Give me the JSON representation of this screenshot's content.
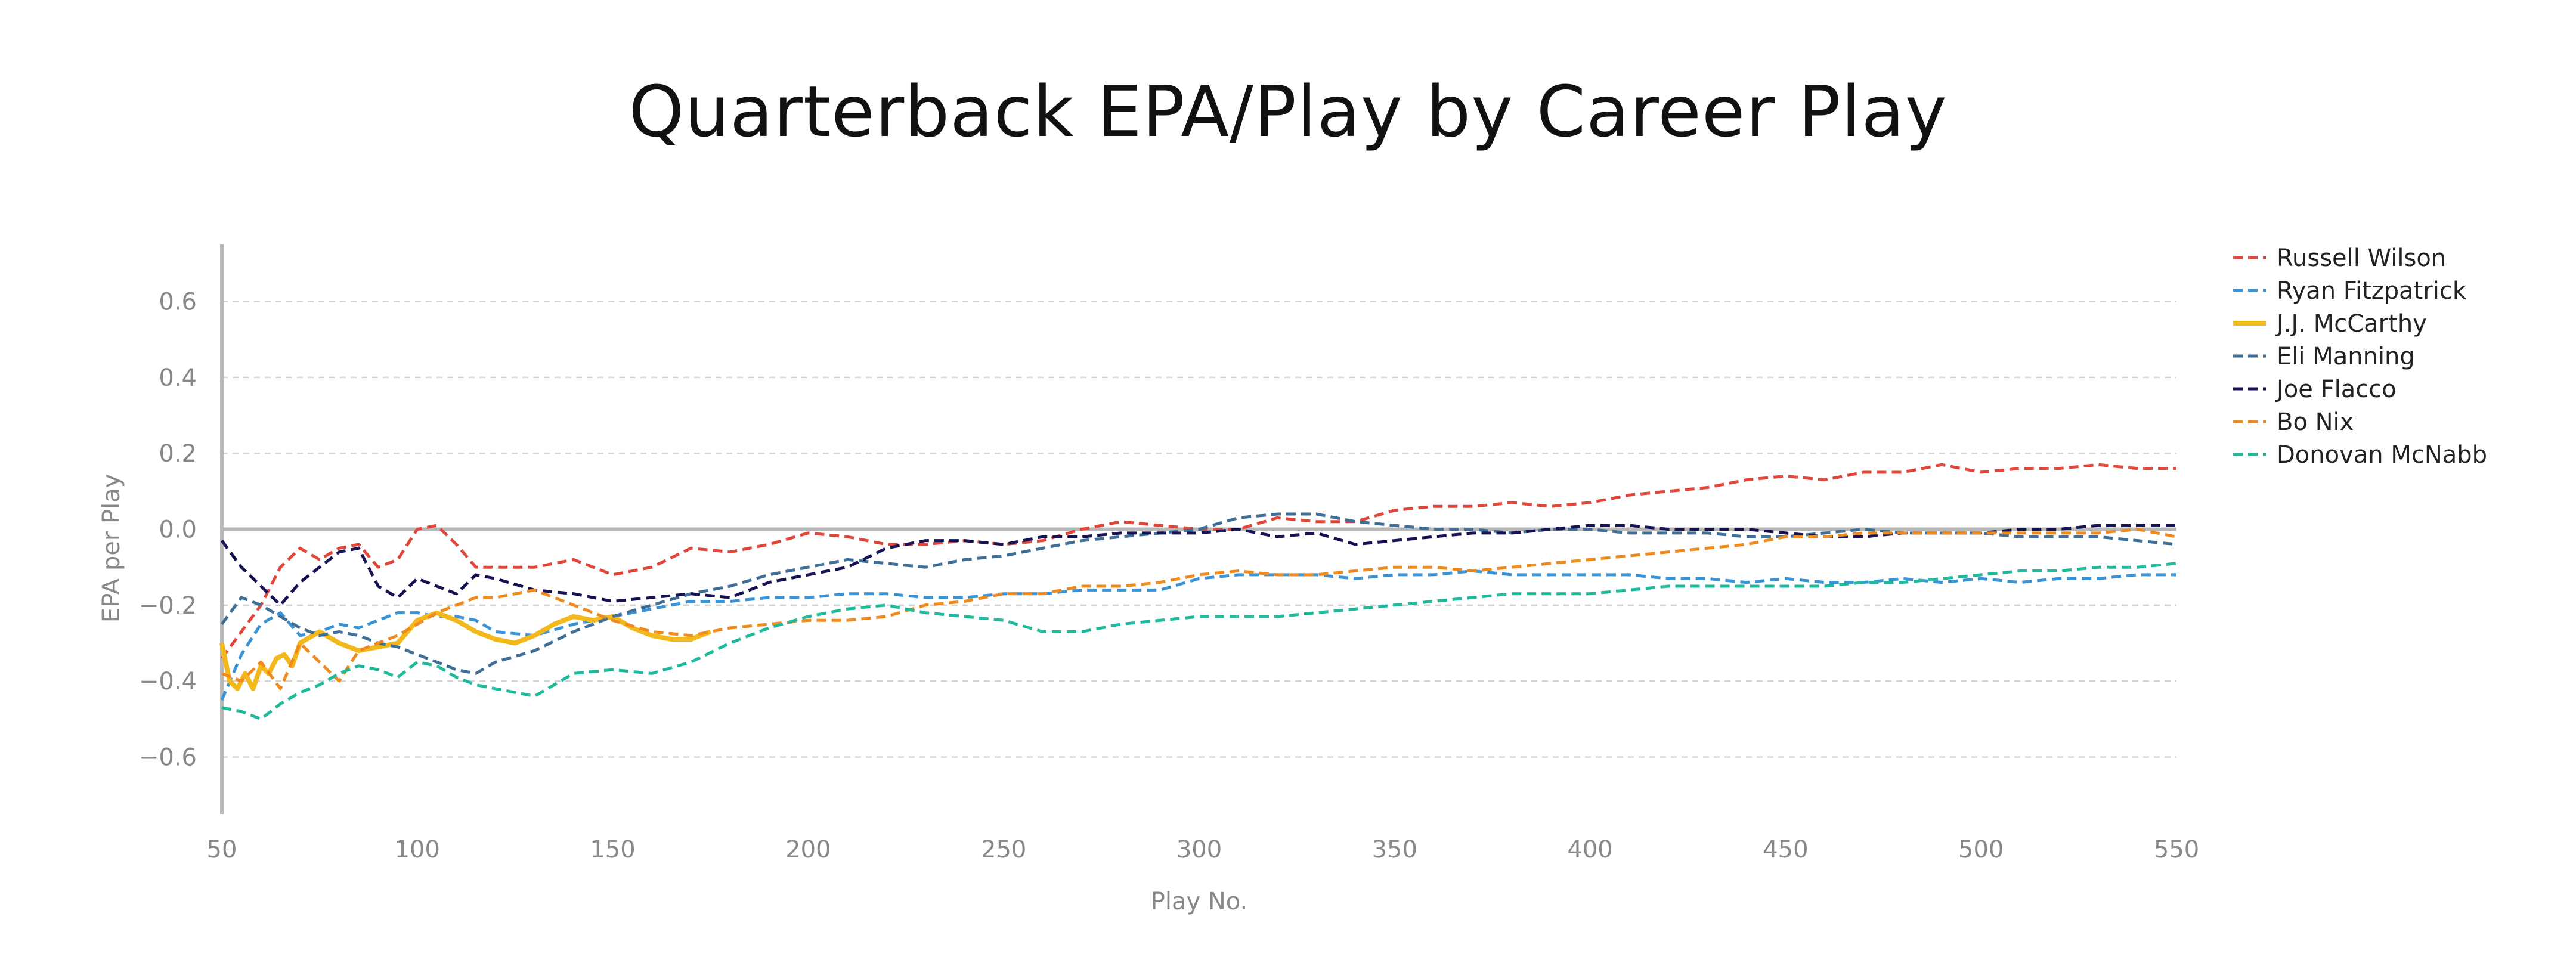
{
  "chart_data": {
    "type": "line",
    "title": "Quarterback EPA/Play by Career Play",
    "xlabel": "Play No.",
    "ylabel": "EPA per Play",
    "xlim": [
      50,
      550
    ],
    "ylim": [
      -0.75,
      0.75
    ],
    "x_ticks": [
      50,
      100,
      150,
      200,
      250,
      300,
      350,
      400,
      450,
      500,
      550
    ],
    "y_ticks": [
      -0.6,
      -0.4,
      -0.2,
      0.0,
      0.2,
      0.4,
      0.6
    ],
    "y_tick_labels": [
      "−0.6",
      "−0.4",
      "−0.2",
      "0.0",
      "0.2",
      "0.4",
      "0.6"
    ],
    "grid": "horizontal dashed",
    "zero_line": true,
    "legend_position": "right",
    "series": [
      {
        "name": "Russell Wilson",
        "color": "#e0463a",
        "dash": true,
        "x": [
          50,
          55,
          60,
          65,
          70,
          75,
          80,
          85,
          90,
          95,
          100,
          105,
          110,
          115,
          120,
          130,
          140,
          150,
          160,
          170,
          180,
          190,
          200,
          210,
          220,
          230,
          240,
          250,
          260,
          270,
          280,
          290,
          300,
          310,
          320,
          330,
          340,
          350,
          360,
          370,
          380,
          390,
          400,
          410,
          420,
          430,
          440,
          450,
          460,
          470,
          480,
          490,
          500,
          510,
          520,
          530,
          540,
          550
        ],
        "y": [
          -0.34,
          -0.27,
          -0.2,
          -0.1,
          -0.05,
          -0.08,
          -0.05,
          -0.04,
          -0.1,
          -0.08,
          0.0,
          0.01,
          -0.04,
          -0.1,
          -0.1,
          -0.1,
          -0.08,
          -0.12,
          -0.1,
          -0.05,
          -0.06,
          -0.04,
          -0.01,
          -0.02,
          -0.04,
          -0.04,
          -0.03,
          -0.04,
          -0.03,
          0.0,
          0.02,
          0.01,
          0.0,
          0.0,
          0.03,
          0.02,
          0.02,
          0.05,
          0.06,
          0.06,
          0.07,
          0.06,
          0.07,
          0.09,
          0.1,
          0.11,
          0.13,
          0.14,
          0.13,
          0.15,
          0.15,
          0.17,
          0.15,
          0.16,
          0.16,
          0.17,
          0.16,
          0.16
        ]
      },
      {
        "name": "Ryan Fitzpatrick",
        "color": "#3a93d4",
        "dash": true,
        "x": [
          50,
          55,
          60,
          65,
          70,
          75,
          80,
          85,
          90,
          95,
          100,
          105,
          110,
          115,
          120,
          130,
          140,
          150,
          160,
          170,
          180,
          190,
          200,
          210,
          220,
          230,
          240,
          250,
          260,
          270,
          280,
          290,
          300,
          310,
          320,
          330,
          340,
          350,
          360,
          370,
          380,
          390,
          400,
          410,
          420,
          430,
          440,
          450,
          460,
          470,
          480,
          490,
          500,
          510,
          520,
          530,
          540,
          550
        ],
        "y": [
          -0.45,
          -0.33,
          -0.25,
          -0.22,
          -0.28,
          -0.27,
          -0.25,
          -0.26,
          -0.24,
          -0.22,
          -0.22,
          -0.23,
          -0.23,
          -0.24,
          -0.27,
          -0.28,
          -0.25,
          -0.23,
          -0.21,
          -0.19,
          -0.19,
          -0.18,
          -0.18,
          -0.17,
          -0.17,
          -0.18,
          -0.18,
          -0.17,
          -0.17,
          -0.16,
          -0.16,
          -0.16,
          -0.13,
          -0.12,
          -0.12,
          -0.12,
          -0.13,
          -0.12,
          -0.12,
          -0.11,
          -0.12,
          -0.12,
          -0.12,
          -0.12,
          -0.13,
          -0.13,
          -0.14,
          -0.13,
          -0.14,
          -0.14,
          -0.13,
          -0.14,
          -0.13,
          -0.14,
          -0.13,
          -0.13,
          -0.12,
          -0.12
        ]
      },
      {
        "name": "J.J. McCarthy",
        "color": "#f2b81c",
        "dash": false,
        "x": [
          50,
          52,
          54,
          56,
          58,
          60,
          62,
          64,
          66,
          68,
          70,
          75,
          80,
          85,
          90,
          95,
          100,
          105,
          110,
          115,
          120,
          125,
          130,
          135,
          140,
          145,
          150,
          155,
          160,
          165,
          170,
          175
        ],
        "y": [
          -0.3,
          -0.4,
          -0.42,
          -0.38,
          -0.42,
          -0.36,
          -0.38,
          -0.34,
          -0.33,
          -0.36,
          -0.3,
          -0.27,
          -0.3,
          -0.32,
          -0.31,
          -0.3,
          -0.24,
          -0.22,
          -0.24,
          -0.27,
          -0.29,
          -0.3,
          -0.28,
          -0.25,
          -0.23,
          -0.24,
          -0.23,
          -0.26,
          -0.28,
          -0.29,
          -0.29,
          -0.27
        ]
      },
      {
        "name": "Eli Manning",
        "color": "#3f6e96",
        "dash": true,
        "x": [
          50,
          55,
          60,
          65,
          70,
          75,
          80,
          85,
          90,
          95,
          100,
          105,
          110,
          115,
          120,
          130,
          140,
          150,
          160,
          170,
          180,
          190,
          200,
          210,
          220,
          230,
          240,
          250,
          260,
          270,
          280,
          290,
          300,
          310,
          320,
          330,
          340,
          350,
          360,
          370,
          380,
          390,
          400,
          410,
          420,
          430,
          440,
          450,
          460,
          470,
          480,
          490,
          500,
          510,
          520,
          530,
          540,
          550
        ],
        "y": [
          -0.25,
          -0.18,
          -0.2,
          -0.23,
          -0.26,
          -0.28,
          -0.27,
          -0.28,
          -0.3,
          -0.31,
          -0.33,
          -0.35,
          -0.37,
          -0.38,
          -0.35,
          -0.32,
          -0.27,
          -0.23,
          -0.2,
          -0.17,
          -0.15,
          -0.12,
          -0.1,
          -0.08,
          -0.09,
          -0.1,
          -0.08,
          -0.07,
          -0.05,
          -0.03,
          -0.02,
          -0.01,
          0.0,
          0.03,
          0.04,
          0.04,
          0.02,
          0.01,
          0.0,
          0.0,
          -0.01,
          0.0,
          0.0,
          -0.01,
          -0.01,
          -0.01,
          -0.02,
          -0.02,
          -0.01,
          0.0,
          -0.01,
          -0.01,
          -0.01,
          -0.02,
          -0.02,
          -0.02,
          -0.03,
          -0.04
        ]
      },
      {
        "name": "Joe Flacco",
        "color": "#151352",
        "dash": true,
        "x": [
          50,
          55,
          60,
          65,
          70,
          75,
          80,
          85,
          90,
          95,
          100,
          105,
          110,
          115,
          120,
          130,
          140,
          150,
          160,
          170,
          180,
          190,
          200,
          210,
          220,
          230,
          240,
          250,
          260,
          270,
          280,
          290,
          300,
          310,
          320,
          330,
          340,
          350,
          360,
          370,
          380,
          390,
          400,
          410,
          420,
          430,
          440,
          450,
          460,
          470,
          480,
          490,
          500,
          510,
          520,
          530,
          540,
          550
        ],
        "y": [
          -0.03,
          -0.1,
          -0.15,
          -0.2,
          -0.14,
          -0.1,
          -0.06,
          -0.05,
          -0.15,
          -0.18,
          -0.13,
          -0.15,
          -0.17,
          -0.12,
          -0.13,
          -0.16,
          -0.17,
          -0.19,
          -0.18,
          -0.17,
          -0.18,
          -0.14,
          -0.12,
          -0.1,
          -0.05,
          -0.03,
          -0.03,
          -0.04,
          -0.02,
          -0.02,
          -0.01,
          -0.01,
          -0.01,
          0.0,
          -0.02,
          -0.01,
          -0.04,
          -0.03,
          -0.02,
          -0.01,
          -0.01,
          0.0,
          0.01,
          0.01,
          0.0,
          0.0,
          0.0,
          -0.01,
          -0.02,
          -0.02,
          -0.01,
          -0.01,
          -0.01,
          0.0,
          0.0,
          0.01,
          0.01,
          0.01
        ]
      },
      {
        "name": "Bo Nix",
        "color": "#ee8a1e",
        "dash": true,
        "x": [
          50,
          55,
          60,
          65,
          70,
          75,
          80,
          85,
          90,
          95,
          100,
          105,
          110,
          115,
          120,
          130,
          140,
          150,
          160,
          170,
          180,
          190,
          200,
          210,
          220,
          230,
          240,
          250,
          260,
          270,
          280,
          290,
          300,
          310,
          320,
          330,
          340,
          350,
          360,
          370,
          380,
          390,
          400,
          410,
          420,
          430,
          440,
          450,
          460,
          470,
          480,
          490,
          500,
          510,
          520,
          530,
          540,
          550
        ],
        "y": [
          -0.38,
          -0.4,
          -0.35,
          -0.42,
          -0.3,
          -0.35,
          -0.4,
          -0.32,
          -0.3,
          -0.28,
          -0.25,
          -0.22,
          -0.2,
          -0.18,
          -0.18,
          -0.16,
          -0.2,
          -0.24,
          -0.27,
          -0.28,
          -0.26,
          -0.25,
          -0.24,
          -0.24,
          -0.23,
          -0.2,
          -0.19,
          -0.17,
          -0.17,
          -0.15,
          -0.15,
          -0.14,
          -0.12,
          -0.11,
          -0.12,
          -0.12,
          -0.11,
          -0.1,
          -0.1,
          -0.11,
          -0.1,
          -0.09,
          -0.08,
          -0.07,
          -0.06,
          -0.05,
          -0.04,
          -0.02,
          -0.02,
          -0.01,
          -0.01,
          -0.01,
          -0.01,
          -0.01,
          -0.01,
          -0.01,
          0.0,
          -0.02
        ]
      },
      {
        "name": "Donovan McNabb",
        "color": "#1fb99c",
        "dash": true,
        "x": [
          50,
          55,
          60,
          65,
          70,
          75,
          80,
          85,
          90,
          95,
          100,
          105,
          110,
          115,
          120,
          130,
          140,
          150,
          160,
          170,
          180,
          190,
          200,
          210,
          220,
          230,
          240,
          250,
          260,
          270,
          280,
          290,
          300,
          310,
          320,
          330,
          340,
          350,
          360,
          370,
          380,
          390,
          400,
          410,
          420,
          430,
          440,
          450,
          460,
          470,
          480,
          490,
          500,
          510,
          520,
          530,
          540,
          550
        ],
        "y": [
          -0.47,
          -0.48,
          -0.5,
          -0.46,
          -0.43,
          -0.41,
          -0.38,
          -0.36,
          -0.37,
          -0.39,
          -0.35,
          -0.36,
          -0.39,
          -0.41,
          -0.42,
          -0.44,
          -0.38,
          -0.37,
          -0.38,
          -0.35,
          -0.3,
          -0.26,
          -0.23,
          -0.21,
          -0.2,
          -0.22,
          -0.23,
          -0.24,
          -0.27,
          -0.27,
          -0.25,
          -0.24,
          -0.23,
          -0.23,
          -0.23,
          -0.22,
          -0.21,
          -0.2,
          -0.19,
          -0.18,
          -0.17,
          -0.17,
          -0.17,
          -0.16,
          -0.15,
          -0.15,
          -0.15,
          -0.15,
          -0.15,
          -0.14,
          -0.14,
          -0.13,
          -0.12,
          -0.11,
          -0.11,
          -0.1,
          -0.1,
          -0.09
        ]
      }
    ]
  }
}
